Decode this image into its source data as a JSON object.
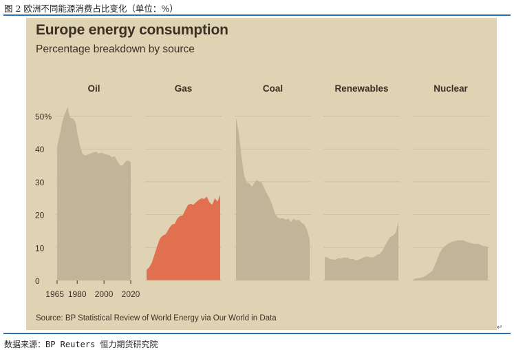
{
  "document": {
    "caption": "图 2 欧洲不同能源消费占比变化（单位：%）",
    "footer": "数据来源：BP Reuters 恒力期货研究院",
    "para_mark": "↵"
  },
  "colors": {
    "panel": "#e0d3b3",
    "area": "#c2b498",
    "highlight": "#e0704f",
    "grid": "#cdbf9f",
    "text": "#3a3126",
    "rule": "#2a6fb5"
  },
  "chart_data": {
    "type": "area",
    "title": "Europe energy consumption",
    "subtitle": "Percentage breakdown by source",
    "source": "Source: BP Statistical Review of World Energy via Our World in Data",
    "x_ticks": [
      "1965",
      "1980",
      "2000",
      "2020"
    ],
    "y_ticks": [
      "0",
      "10",
      "20",
      "30",
      "40",
      "50%"
    ],
    "ylim": [
      0,
      52
    ],
    "xlim": [
      1965,
      2020
    ],
    "grid": true,
    "highlight_series": "Gas",
    "series": [
      {
        "name": "Oil",
        "x": [
          1965,
          1967,
          1969,
          1971,
          1973,
          1974,
          1975,
          1977,
          1979,
          1980,
          1982,
          1984,
          1986,
          1988,
          1990,
          1992,
          1994,
          1996,
          1998,
          2000,
          2002,
          2004,
          2006,
          2008,
          2010,
          2012,
          2014,
          2016,
          2018,
          2020
        ],
        "values": [
          40.5,
          44.5,
          48.5,
          51,
          52.8,
          50.5,
          49.5,
          49.2,
          48,
          45,
          41,
          38.5,
          38,
          38.3,
          38.6,
          38.9,
          39.2,
          38.6,
          38.9,
          38.5,
          38.3,
          38.1,
          37.5,
          37.8,
          36.3,
          35,
          35,
          36.2,
          36.5,
          36
        ]
      },
      {
        "name": "Gas",
        "x": [
          1965,
          1967,
          1969,
          1971,
          1973,
          1975,
          1977,
          1979,
          1980,
          1982,
          1984,
          1986,
          1988,
          1990,
          1992,
          1994,
          1996,
          1998,
          2000,
          2002,
          2004,
          2006,
          2008,
          2010,
          2012,
          2014,
          2016,
          2018,
          2020
        ],
        "values": [
          3.2,
          4,
          5.5,
          8,
          10.5,
          12.8,
          13.6,
          14,
          14.5,
          16,
          17,
          17.2,
          18.8,
          19.6,
          19.8,
          21.5,
          23,
          23.3,
          23,
          23.8,
          24.5,
          25,
          24.8,
          25.5,
          23.8,
          23,
          25,
          24,
          26
        ]
      },
      {
        "name": "Coal",
        "x": [
          1965,
          1967,
          1969,
          1971,
          1973,
          1975,
          1977,
          1979,
          1980,
          1982,
          1984,
          1986,
          1988,
          1990,
          1992,
          1994,
          1996,
          1998,
          2000,
          2002,
          2004,
          2006,
          2008,
          2010,
          2012,
          2014,
          2016,
          2018,
          2020
        ],
        "values": [
          49.5,
          45,
          38,
          32,
          29.8,
          29.5,
          28.5,
          29.8,
          30.5,
          30.2,
          29.8,
          28.2,
          26.5,
          25,
          23,
          20.5,
          19.2,
          18.8,
          19,
          18.5,
          18.8,
          17.8,
          18.8,
          18.2,
          18.5,
          17.5,
          17,
          15.5,
          12.5
        ]
      },
      {
        "name": "Renewables",
        "x": [
          1965,
          1967,
          1969,
          1971,
          1973,
          1975,
          1977,
          1979,
          1980,
          1982,
          1984,
          1986,
          1988,
          1990,
          1992,
          1994,
          1996,
          1998,
          2000,
          2002,
          2004,
          2006,
          2008,
          2010,
          2012,
          2014,
          2016,
          2018,
          2020
        ],
        "values": [
          7.2,
          7,
          6.5,
          6.4,
          6.3,
          6.8,
          6.6,
          7,
          6.9,
          7,
          6.4,
          6.6,
          6.1,
          6.2,
          6.6,
          7,
          7.3,
          7.2,
          7,
          7.1,
          7.8,
          8,
          9,
          10.5,
          12,
          13.3,
          13.6,
          14.5,
          17.8
        ]
      },
      {
        "name": "Nuclear",
        "x": [
          1965,
          1967,
          1969,
          1971,
          1973,
          1975,
          1977,
          1979,
          1980,
          1982,
          1984,
          1986,
          1988,
          1990,
          1992,
          1994,
          1996,
          1998,
          2000,
          2002,
          2004,
          2006,
          2008,
          2010,
          2012,
          2014,
          2016,
          2018,
          2020
        ],
        "values": [
          0.4,
          0.6,
          0.7,
          0.9,
          1.2,
          1.7,
          2.3,
          3,
          4,
          5.8,
          8,
          9.5,
          10.4,
          11,
          11.5,
          11.9,
          12,
          12.2,
          12.2,
          12.2,
          11.8,
          11.6,
          11.3,
          11.1,
          11.2,
          11,
          10.5,
          10.4,
          10.2
        ]
      }
    ]
  }
}
